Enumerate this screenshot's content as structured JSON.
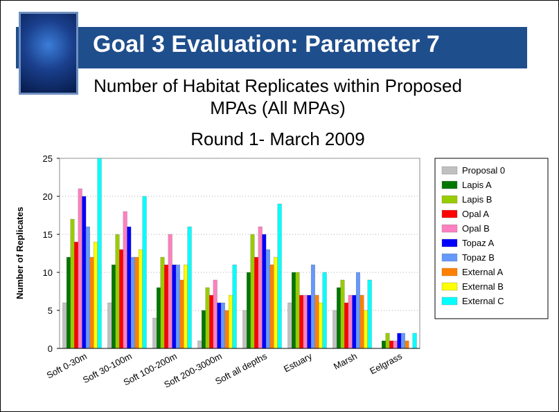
{
  "header": {
    "title": "Goal 3 Evaluation: Parameter 7"
  },
  "chart_data": {
    "type": "bar",
    "title": "Number of Habitat Replicates within Proposed MPAs (All MPAs)",
    "subtitle": "Round 1- March 2009",
    "y_label": "Number of Replicates",
    "categories": [
      "Soft 0-30m",
      "Soft 30-100m",
      "Soft 100-200m",
      "Soft 200-3000m",
      "Soft all depths",
      "Estuary",
      "Marsh",
      "Eelgrass"
    ],
    "series": [
      {
        "name": "Proposal 0",
        "color": "#c0c0c0",
        "values": [
          6,
          6,
          4,
          1,
          5,
          6,
          5,
          0
        ]
      },
      {
        "name": "Lapis A",
        "color": "#007800",
        "values": [
          12,
          11,
          8,
          5,
          10,
          10,
          8,
          1
        ]
      },
      {
        "name": "Lapis B",
        "color": "#99cc00",
        "values": [
          17,
          15,
          12,
          8,
          15,
          10,
          9,
          2
        ]
      },
      {
        "name": "Opal A",
        "color": "#ff0000",
        "values": [
          14,
          13,
          11,
          7,
          12,
          7,
          6,
          1
        ]
      },
      {
        "name": "Opal B",
        "color": "#ff80c0",
        "values": [
          21,
          18,
          15,
          9,
          16,
          7,
          7,
          1
        ]
      },
      {
        "name": "Topaz A",
        "color": "#0000ff",
        "values": [
          20,
          16,
          11,
          6,
          15,
          7,
          7,
          2
        ]
      },
      {
        "name": "Topaz B",
        "color": "#6699ff",
        "values": [
          16,
          12,
          11,
          6,
          13,
          11,
          10,
          2
        ]
      },
      {
        "name": "External A",
        "color": "#ff8000",
        "values": [
          12,
          12,
          9,
          5,
          11,
          7,
          7,
          1
        ]
      },
      {
        "name": "External B",
        "color": "#ffff00",
        "values": [
          14,
          13,
          11,
          7,
          12,
          6,
          5,
          0
        ]
      },
      {
        "name": "External C",
        "color": "#00ffff",
        "values": [
          25,
          20,
          16,
          11,
          19,
          10,
          9,
          2
        ]
      }
    ],
    "ylim": [
      0,
      25
    ],
    "yticks": [
      0,
      5,
      10,
      15,
      20,
      25
    ],
    "grid": true,
    "legend": "right"
  }
}
